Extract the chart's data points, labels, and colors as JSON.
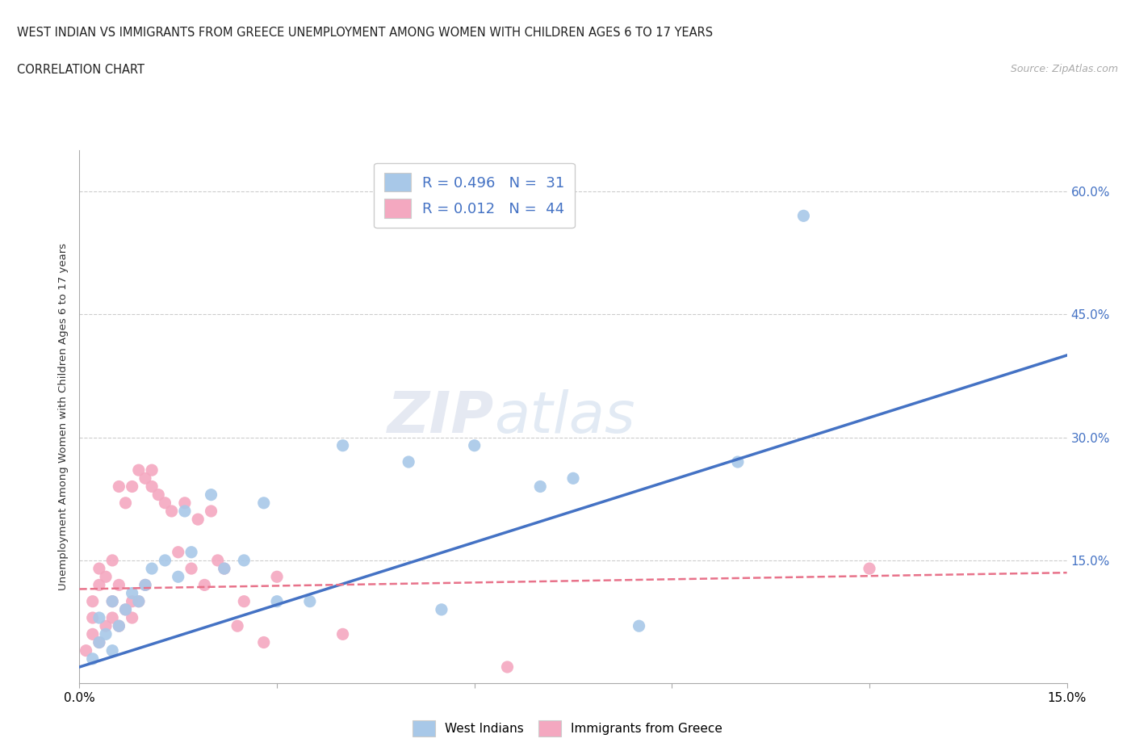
{
  "title": "WEST INDIAN VS IMMIGRANTS FROM GREECE UNEMPLOYMENT AMONG WOMEN WITH CHILDREN AGES 6 TO 17 YEARS",
  "subtitle": "CORRELATION CHART",
  "source": "Source: ZipAtlas.com",
  "ylabel": "Unemployment Among Women with Children Ages 6 to 17 years",
  "xlim": [
    0.0,
    0.15
  ],
  "ylim": [
    0.0,
    0.65
  ],
  "xticks": [
    0.0,
    0.03,
    0.06,
    0.09,
    0.12,
    0.15
  ],
  "xticklabels": [
    "0.0%",
    "",
    "",
    "",
    "",
    "15.0%"
  ],
  "ytick_positions": [
    0.0,
    0.15,
    0.3,
    0.45,
    0.6
  ],
  "ytick_labels": [
    "",
    "15.0%",
    "30.0%",
    "45.0%",
    "60.0%"
  ],
  "watermark": "ZIPatlas",
  "blue_color": "#a8c8e8",
  "pink_color": "#f4a8c0",
  "blue_line_color": "#4472c4",
  "pink_line_color": "#e8728a",
  "legend_blue_label": "R = 0.496   N =  31",
  "legend_pink_label": "R = 0.012   N =  44",
  "west_indians_x": [
    0.002,
    0.003,
    0.003,
    0.004,
    0.005,
    0.005,
    0.006,
    0.007,
    0.008,
    0.009,
    0.01,
    0.011,
    0.013,
    0.015,
    0.016,
    0.017,
    0.02,
    0.022,
    0.025,
    0.028,
    0.03,
    0.035,
    0.04,
    0.05,
    0.055,
    0.06,
    0.07,
    0.075,
    0.085,
    0.1,
    0.11
  ],
  "west_indians_y": [
    0.03,
    0.05,
    0.08,
    0.06,
    0.04,
    0.1,
    0.07,
    0.09,
    0.11,
    0.1,
    0.12,
    0.14,
    0.15,
    0.13,
    0.21,
    0.16,
    0.23,
    0.14,
    0.15,
    0.22,
    0.1,
    0.1,
    0.29,
    0.27,
    0.09,
    0.29,
    0.24,
    0.25,
    0.07,
    0.27,
    0.57
  ],
  "greece_x": [
    0.001,
    0.002,
    0.002,
    0.002,
    0.003,
    0.003,
    0.003,
    0.004,
    0.004,
    0.005,
    0.005,
    0.005,
    0.006,
    0.006,
    0.006,
    0.007,
    0.007,
    0.008,
    0.008,
    0.008,
    0.009,
    0.009,
    0.01,
    0.01,
    0.011,
    0.011,
    0.012,
    0.013,
    0.014,
    0.015,
    0.016,
    0.017,
    0.018,
    0.019,
    0.02,
    0.021,
    0.022,
    0.024,
    0.025,
    0.028,
    0.03,
    0.04,
    0.065,
    0.12
  ],
  "greece_y": [
    0.04,
    0.06,
    0.08,
    0.1,
    0.05,
    0.12,
    0.14,
    0.07,
    0.13,
    0.08,
    0.1,
    0.15,
    0.07,
    0.12,
    0.24,
    0.09,
    0.22,
    0.08,
    0.1,
    0.24,
    0.1,
    0.26,
    0.12,
    0.25,
    0.24,
    0.26,
    0.23,
    0.22,
    0.21,
    0.16,
    0.22,
    0.14,
    0.2,
    0.12,
    0.21,
    0.15,
    0.14,
    0.07,
    0.1,
    0.05,
    0.13,
    0.06,
    0.02,
    0.14
  ],
  "blue_line_x": [
    0.0,
    0.15
  ],
  "blue_line_y": [
    0.02,
    0.4
  ],
  "pink_line_x": [
    0.0,
    0.15
  ],
  "pink_line_y": [
    0.115,
    0.135
  ]
}
